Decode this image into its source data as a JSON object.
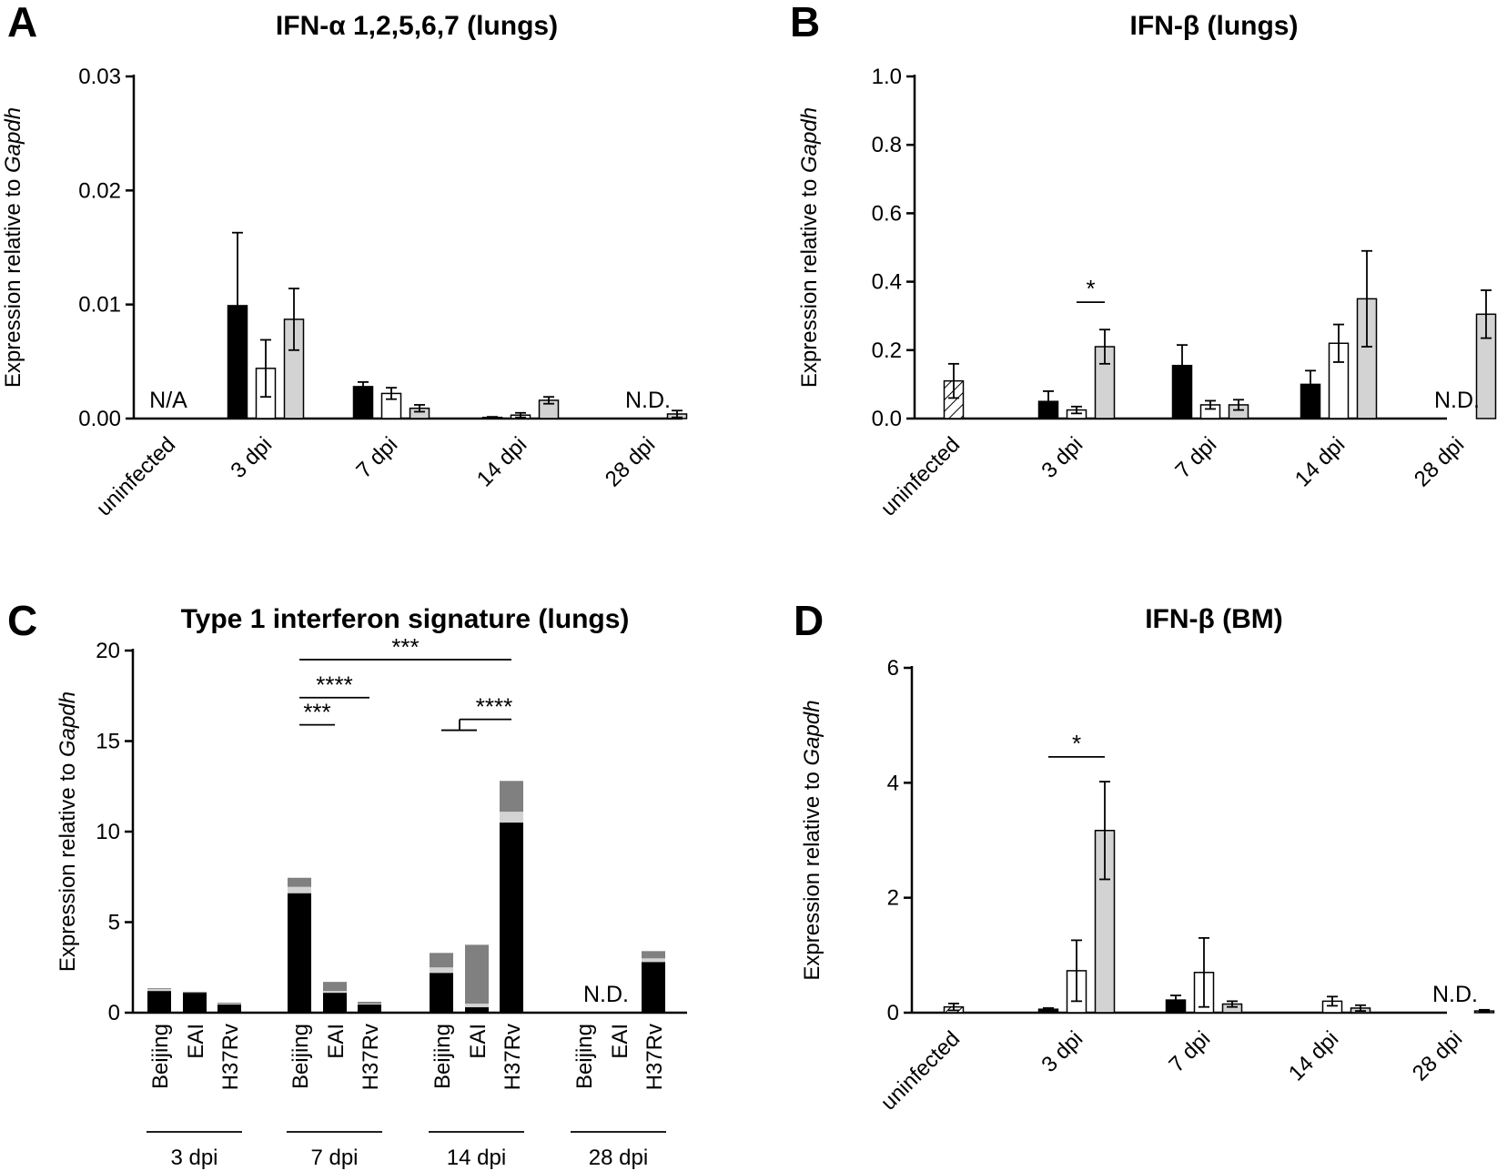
{
  "chart_data": [
    {
      "panel": "A",
      "type": "bar",
      "title": "IFN-α 1,2,5,6,7 (lungs)",
      "ylabel_prefix": "Expression relative to ",
      "ylabel_gene": "Gapdh",
      "ylim": [
        0,
        0.03
      ],
      "yticks": [
        "0.00",
        "0.01",
        "0.02",
        "0.03"
      ],
      "categories": [
        "uninfected",
        "3 dpi",
        "7 dpi",
        "14 dpi",
        "28 dpi"
      ],
      "series": [
        {
          "name": "Beijing",
          "fill": "#000000",
          "values": [
            null,
            0.0099,
            0.0028,
            0.0001,
            null
          ],
          "errors": [
            null,
            0.0064,
            0.0004,
            5e-05,
            null
          ]
        },
        {
          "name": "EAI",
          "fill": "#ffffff",
          "values": [
            null,
            0.0044,
            0.0022,
            0.0003,
            null
          ],
          "errors": [
            null,
            0.0025,
            0.0005,
            0.0002,
            null
          ]
        },
        {
          "name": "H37Rv",
          "fill": "#d3d3d3",
          "values": [
            null,
            0.0087,
            0.0009,
            0.0016,
            0.0004
          ],
          "errors": [
            null,
            0.0027,
            0.0003,
            0.0003,
            0.0003
          ]
        }
      ],
      "annotations": [
        {
          "text": "N/A",
          "category": "uninfected",
          "y": 0.0
        },
        {
          "text": "N.D.",
          "category": "28 dpi",
          "y": 0.0
        }
      ]
    },
    {
      "panel": "B",
      "type": "bar",
      "title": "IFN-β (lungs)",
      "ylabel_prefix": "Expression relative to ",
      "ylabel_gene": "Gapdh",
      "ylim": [
        0,
        1.0
      ],
      "yticks": [
        "0.0",
        "0.2",
        "0.4",
        "0.6",
        "0.8",
        "1.0"
      ],
      "categories": [
        "uninfected",
        "3 dpi",
        "7 dpi",
        "14 dpi",
        "28 dpi"
      ],
      "uninfected": {
        "value": 0.11,
        "error": 0.05,
        "fill": "hatched"
      },
      "series": [
        {
          "name": "Beijing",
          "fill": "#000000",
          "values": [
            null,
            0.05,
            0.155,
            0.1,
            null
          ],
          "errors": [
            null,
            0.03,
            0.06,
            0.04,
            null
          ]
        },
        {
          "name": "EAI",
          "fill": "#ffffff",
          "values": [
            null,
            0.025,
            0.04,
            0.22,
            null
          ],
          "errors": [
            null,
            0.01,
            0.012,
            0.055,
            null
          ]
        },
        {
          "name": "H37Rv",
          "fill": "#d3d3d3",
          "values": [
            null,
            0.21,
            0.04,
            0.35,
            0.305
          ],
          "errors": [
            null,
            0.05,
            0.015,
            0.14,
            0.07
          ]
        }
      ],
      "significance": [
        {
          "text": "*",
          "category": "3 dpi",
          "from": "EAI",
          "to": "H37Rv",
          "y": 0.34
        }
      ],
      "annotations": [
        {
          "text": "N.D.",
          "category": "28 dpi",
          "y": 0.0
        }
      ]
    },
    {
      "panel": "C",
      "type": "bar",
      "stacked": true,
      "title": "Type 1 interferon signature (lungs)",
      "ylabel_prefix": "Expression relative to ",
      "ylabel_gene": "Gapdh",
      "ylim": [
        0,
        20
      ],
      "yticks": [
        "0",
        "5",
        "10",
        "15",
        "20"
      ],
      "groups": [
        "3 dpi",
        "7 dpi",
        "14 dpi",
        "28 dpi"
      ],
      "strains": [
        "Beijing",
        "EAI",
        "H37Rv"
      ],
      "stack_fills": [
        "#000000",
        "#d3d3d3",
        "#808080"
      ],
      "stacks": [
        [
          [
            1.2,
            0.1,
            0.05
          ],
          [
            1.1,
            0.0,
            0.05
          ],
          [
            0.45,
            0.05,
            0.05
          ]
        ],
        [
          [
            6.6,
            0.35,
            0.5
          ],
          [
            1.1,
            0.1,
            0.5
          ],
          [
            0.45,
            0.05,
            0.1
          ]
        ],
        [
          [
            2.2,
            0.3,
            0.8
          ],
          [
            0.3,
            0.2,
            3.25
          ],
          [
            10.5,
            0.6,
            1.7
          ]
        ],
        [
          [
            null,
            null,
            null
          ],
          [
            null,
            null,
            null
          ],
          [
            2.8,
            0.2,
            0.4
          ]
        ]
      ],
      "significance": [
        {
          "text": "***",
          "from": "7 dpi Beijing",
          "to": "14 dpi H37Rv",
          "y": 19.5
        },
        {
          "text": "****",
          "from": "7 dpi Beijing",
          "to": "7 dpi H37Rv",
          "y": 17.4
        },
        {
          "text": "***",
          "from": "7 dpi Beijing",
          "to": "7 dpi EAI",
          "y": 15.9
        },
        {
          "text": "****",
          "from": "14 dpi EAI-Beijing",
          "to": "14 dpi H37Rv",
          "y": 16.2
        }
      ],
      "annotations": [
        {
          "text": "N.D.",
          "group": "28 dpi",
          "y": 0.0
        }
      ]
    },
    {
      "panel": "D",
      "type": "bar",
      "title": "IFN-β (BM)",
      "ylabel_prefix": "Expression relative to ",
      "ylabel_gene": "Gapdh",
      "ylim": [
        0,
        6
      ],
      "yticks": [
        "0",
        "2",
        "4",
        "6"
      ],
      "categories": [
        "uninfected",
        "3 dpi",
        "7 dpi",
        "14 dpi",
        "28 dpi"
      ],
      "uninfected": {
        "value": 0.1,
        "error": 0.06,
        "fill": "hatched"
      },
      "series": [
        {
          "name": "Beijing",
          "fill": "#000000",
          "values": [
            null,
            0.06,
            0.22,
            null,
            null
          ],
          "errors": [
            null,
            0.02,
            0.08,
            null,
            null
          ]
        },
        {
          "name": "EAI",
          "fill": "#ffffff",
          "values": [
            null,
            0.73,
            0.7,
            0.2,
            null
          ],
          "errors": [
            null,
            0.53,
            0.6,
            0.08,
            null
          ]
        },
        {
          "name": "H37Rv",
          "fill": "#d3d3d3",
          "values": [
            null,
            3.17,
            0.15,
            0.08,
            0.03
          ],
          "errors": [
            null,
            0.85,
            0.05,
            0.05,
            0.02
          ]
        }
      ],
      "significance": [
        {
          "text": "*",
          "category": "3 dpi",
          "from": "Beijing",
          "to": "H37Rv",
          "y": 4.45
        }
      ],
      "annotations": [
        {
          "text": "N.D.",
          "category": "28 dpi",
          "y": 0.0
        }
      ]
    }
  ]
}
